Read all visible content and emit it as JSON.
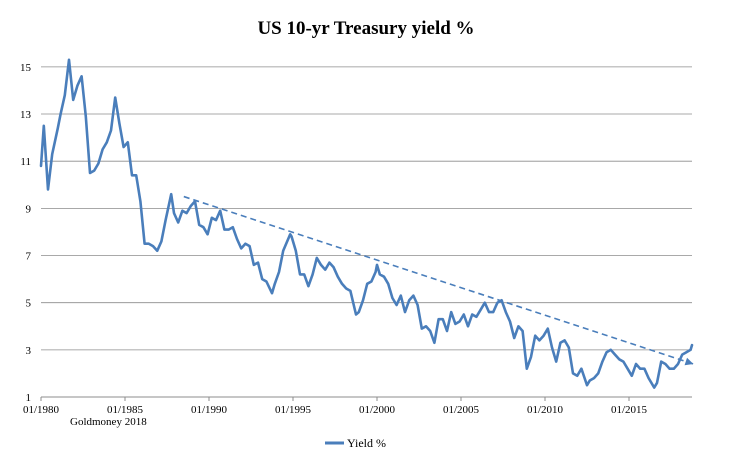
{
  "colors": {
    "series": "#4a7ebb",
    "grid": "#8c8c8c",
    "axis": "#8c8c8c",
    "text": "#000000"
  },
  "chart_data": {
    "type": "line",
    "title": "US 10-yr Treasury yield %",
    "source": "Goldmoney 2018",
    "xlabel": "",
    "ylabel": "",
    "x_ticks": [
      "01/1980",
      "01/1985",
      "01/1990",
      "01/1995",
      "01/2000",
      "01/2005",
      "01/2010",
      "01/2015"
    ],
    "y_ticks": [
      "1",
      "3",
      "5",
      "7",
      "9",
      "11",
      "13",
      "15"
    ],
    "ylim": [
      1,
      15.8
    ],
    "xlim": [
      "1980-01",
      "2018-10"
    ],
    "grid": true,
    "legend": "bottom",
    "series": [
      {
        "name": "Yield %",
        "x": [
          "1980-01",
          "1980-03",
          "1980-06",
          "1980-09",
          "1981-01",
          "1981-03",
          "1981-06",
          "1981-09",
          "1981-12",
          "1982-03",
          "1982-06",
          "1982-09",
          "1982-12",
          "1983-03",
          "1983-06",
          "1983-09",
          "1983-12",
          "1984-03",
          "1984-06",
          "1984-09",
          "1984-12",
          "1985-03",
          "1985-06",
          "1985-09",
          "1985-12",
          "1986-03",
          "1986-06",
          "1986-09",
          "1986-12",
          "1987-03",
          "1987-06",
          "1987-10",
          "1987-12",
          "1988-03",
          "1988-06",
          "1988-09",
          "1988-12",
          "1989-03",
          "1989-06",
          "1989-09",
          "1989-12",
          "1990-03",
          "1990-06",
          "1990-09",
          "1990-12",
          "1991-03",
          "1991-06",
          "1991-09",
          "1991-12",
          "1992-03",
          "1992-06",
          "1992-09",
          "1992-12",
          "1993-03",
          "1993-06",
          "1993-10",
          "1993-12",
          "1994-03",
          "1994-06",
          "1994-11",
          "1994-12",
          "1995-03",
          "1995-06",
          "1995-09",
          "1995-12",
          "1996-03",
          "1996-06",
          "1996-09",
          "1996-12",
          "1997-03",
          "1997-06",
          "1997-09",
          "1997-12",
          "1998-03",
          "1998-06",
          "1998-10",
          "1998-12",
          "1999-03",
          "1999-06",
          "1999-09",
          "1999-12",
          "2000-01",
          "2000-03",
          "2000-06",
          "2000-09",
          "2000-12",
          "2001-03",
          "2001-06",
          "2001-09",
          "2001-12",
          "2002-03",
          "2002-06",
          "2002-09",
          "2002-12",
          "2003-03",
          "2003-06",
          "2003-09",
          "2003-12",
          "2004-03",
          "2004-06",
          "2004-09",
          "2004-12",
          "2005-03",
          "2005-06",
          "2005-09",
          "2005-12",
          "2006-03",
          "2006-06",
          "2006-09",
          "2006-12",
          "2007-03",
          "2007-06",
          "2007-09",
          "2007-12",
          "2008-03",
          "2008-06",
          "2008-09",
          "2008-12",
          "2009-03",
          "2009-06",
          "2009-09",
          "2009-12",
          "2010-03",
          "2010-06",
          "2010-09",
          "2010-12",
          "2011-03",
          "2011-06",
          "2011-09",
          "2011-12",
          "2012-03",
          "2012-07",
          "2012-09",
          "2012-12",
          "2013-03",
          "2013-06",
          "2013-09",
          "2013-12",
          "2014-03",
          "2014-06",
          "2014-09",
          "2014-12",
          "2015-03",
          "2015-06",
          "2015-09",
          "2015-12",
          "2016-03",
          "2016-07",
          "2016-09",
          "2016-12",
          "2017-03",
          "2017-06",
          "2017-09",
          "2017-12",
          "2018-03",
          "2018-06",
          "2018-09",
          "2018-10"
        ],
        "values": [
          10.8,
          12.5,
          9.8,
          11.3,
          12.4,
          13.0,
          13.8,
          15.3,
          13.6,
          14.2,
          14.6,
          12.9,
          10.5,
          10.6,
          10.9,
          11.5,
          11.8,
          12.3,
          13.7,
          12.6,
          11.6,
          11.8,
          10.4,
          10.4,
          9.3,
          7.5,
          7.5,
          7.4,
          7.2,
          7.6,
          8.5,
          9.6,
          8.8,
          8.4,
          8.9,
          8.8,
          9.1,
          9.3,
          8.3,
          8.2,
          7.9,
          8.6,
          8.5,
          8.9,
          8.1,
          8.1,
          8.2,
          7.7,
          7.3,
          7.5,
          7.4,
          6.6,
          6.7,
          6.0,
          5.9,
          5.4,
          5.8,
          6.3,
          7.2,
          7.9,
          7.8,
          7.2,
          6.2,
          6.2,
          5.7,
          6.2,
          6.9,
          6.6,
          6.4,
          6.7,
          6.5,
          6.1,
          5.8,
          5.6,
          5.5,
          4.5,
          4.6,
          5.1,
          5.8,
          5.9,
          6.3,
          6.6,
          6.2,
          6.1,
          5.8,
          5.2,
          4.9,
          5.3,
          4.6,
          5.1,
          5.3,
          4.9,
          3.9,
          4.0,
          3.8,
          3.3,
          4.3,
          4.3,
          3.8,
          4.6,
          4.1,
          4.2,
          4.5,
          4.0,
          4.5,
          4.4,
          4.7,
          5.0,
          4.6,
          4.6,
          5.0,
          5.1,
          4.6,
          4.2,
          3.5,
          4.0,
          3.8,
          2.2,
          2.7,
          3.6,
          3.4,
          3.6,
          3.9,
          3.1,
          2.5,
          3.3,
          3.4,
          3.1,
          2.0,
          1.9,
          2.2,
          1.5,
          1.7,
          1.8,
          2.0,
          2.5,
          2.9,
          3.0,
          2.8,
          2.6,
          2.5,
          2.2,
          1.9,
          2.4,
          2.2,
          2.2,
          1.8,
          1.4,
          1.6,
          2.5,
          2.4,
          2.2,
          2.2,
          2.4,
          2.8,
          2.9,
          3.0,
          3.2
        ]
      }
    ],
    "trendline": {
      "style": "dashed",
      "x": [
        "1988-07",
        "2018-11"
      ],
      "values": [
        9.5,
        2.4
      ]
    }
  }
}
